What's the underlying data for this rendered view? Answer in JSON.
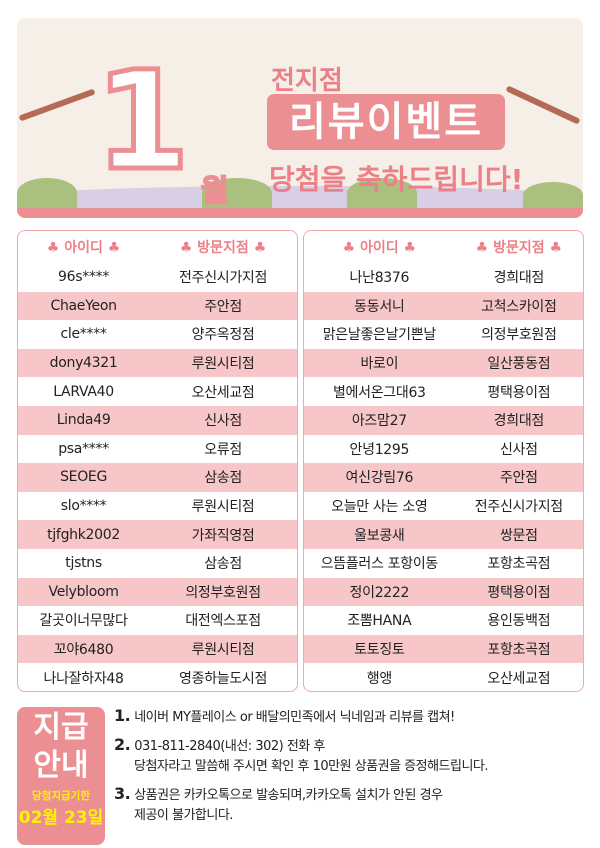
{
  "banner": {
    "month_number": "1",
    "month_label": "월",
    "branch": "전지점",
    "event": "리뷰이벤트",
    "congrats": "당첨을 축하드립니다!"
  },
  "colors": {
    "accent": "#ec8f93",
    "row_stripe": "#f7c6c8",
    "deadline": "#fff200"
  },
  "headers": {
    "id": "아이디",
    "branch": "방문지점",
    "icon": "club-icon"
  },
  "left_rows": [
    [
      "96s****",
      "전주신시가지점"
    ],
    [
      "ChaeYeon",
      "주안점"
    ],
    [
      "cle****",
      "양주옥정점"
    ],
    [
      "dony4321",
      "루원시티점"
    ],
    [
      "LARVA40",
      "오산세교점"
    ],
    [
      "Linda49",
      "신사점"
    ],
    [
      "psa****",
      "오류점"
    ],
    [
      "SEOEG",
      "삼송점"
    ],
    [
      "slo****",
      "루원시티점"
    ],
    [
      "tjfghk2002",
      "가좌직영점"
    ],
    [
      "tjstns",
      "삼송점"
    ],
    [
      "Velybloom",
      "의정부호원점"
    ],
    [
      "갈곳이너무많다",
      "대전엑스포점"
    ],
    [
      "꼬야6480",
      "루원시티점"
    ],
    [
      "나나잘하자48",
      "영종하늘도시점"
    ]
  ],
  "right_rows": [
    [
      "나난8376",
      "경희대점"
    ],
    [
      "동동서니",
      "고척스카이점"
    ],
    [
      "맑은날좋은날기쁜날",
      "의정부호원점"
    ],
    [
      "바로이",
      "일산풍동점"
    ],
    [
      "별에서온그대63",
      "평택용이점"
    ],
    [
      "아즈맘27",
      "경희대점"
    ],
    [
      "안녕1295",
      "신사점"
    ],
    [
      "여신강림76",
      "주안점"
    ],
    [
      "오늘만 사는 소영",
      "전주신시가지점"
    ],
    [
      "울보콩새",
      "쌍문점"
    ],
    [
      "으뜸플러스 포항이동",
      "포항초곡점"
    ],
    [
      "정이2222",
      "평택용이점"
    ],
    [
      "조뽐HANA",
      "용인동백점"
    ],
    [
      "토토징토",
      "포항초곡점"
    ],
    [
      "행앵",
      "오산세교점"
    ]
  ],
  "notice": {
    "title1": "지급",
    "title2": "안내",
    "deadline_label": "당첨지급기한",
    "deadline": "02월 23일"
  },
  "steps": [
    {
      "num": "1.",
      "lines": [
        "네이버 MY플레이스 or 배달의민족에서 닉네임과 리뷰를 캡쳐!"
      ]
    },
    {
      "num": "2.",
      "lines": [
        "031-811-2840(내선: 302) 전화 후",
        "당첨자라고 말씀해 주시면 확인 후 10만원 상품권을 증정해드립니다."
      ]
    },
    {
      "num": "3.",
      "lines": [
        "상품권은 카카오톡으로 발송되며,카카오톡 설치가 안된 경우",
        "제공이 불가합니다."
      ]
    }
  ]
}
